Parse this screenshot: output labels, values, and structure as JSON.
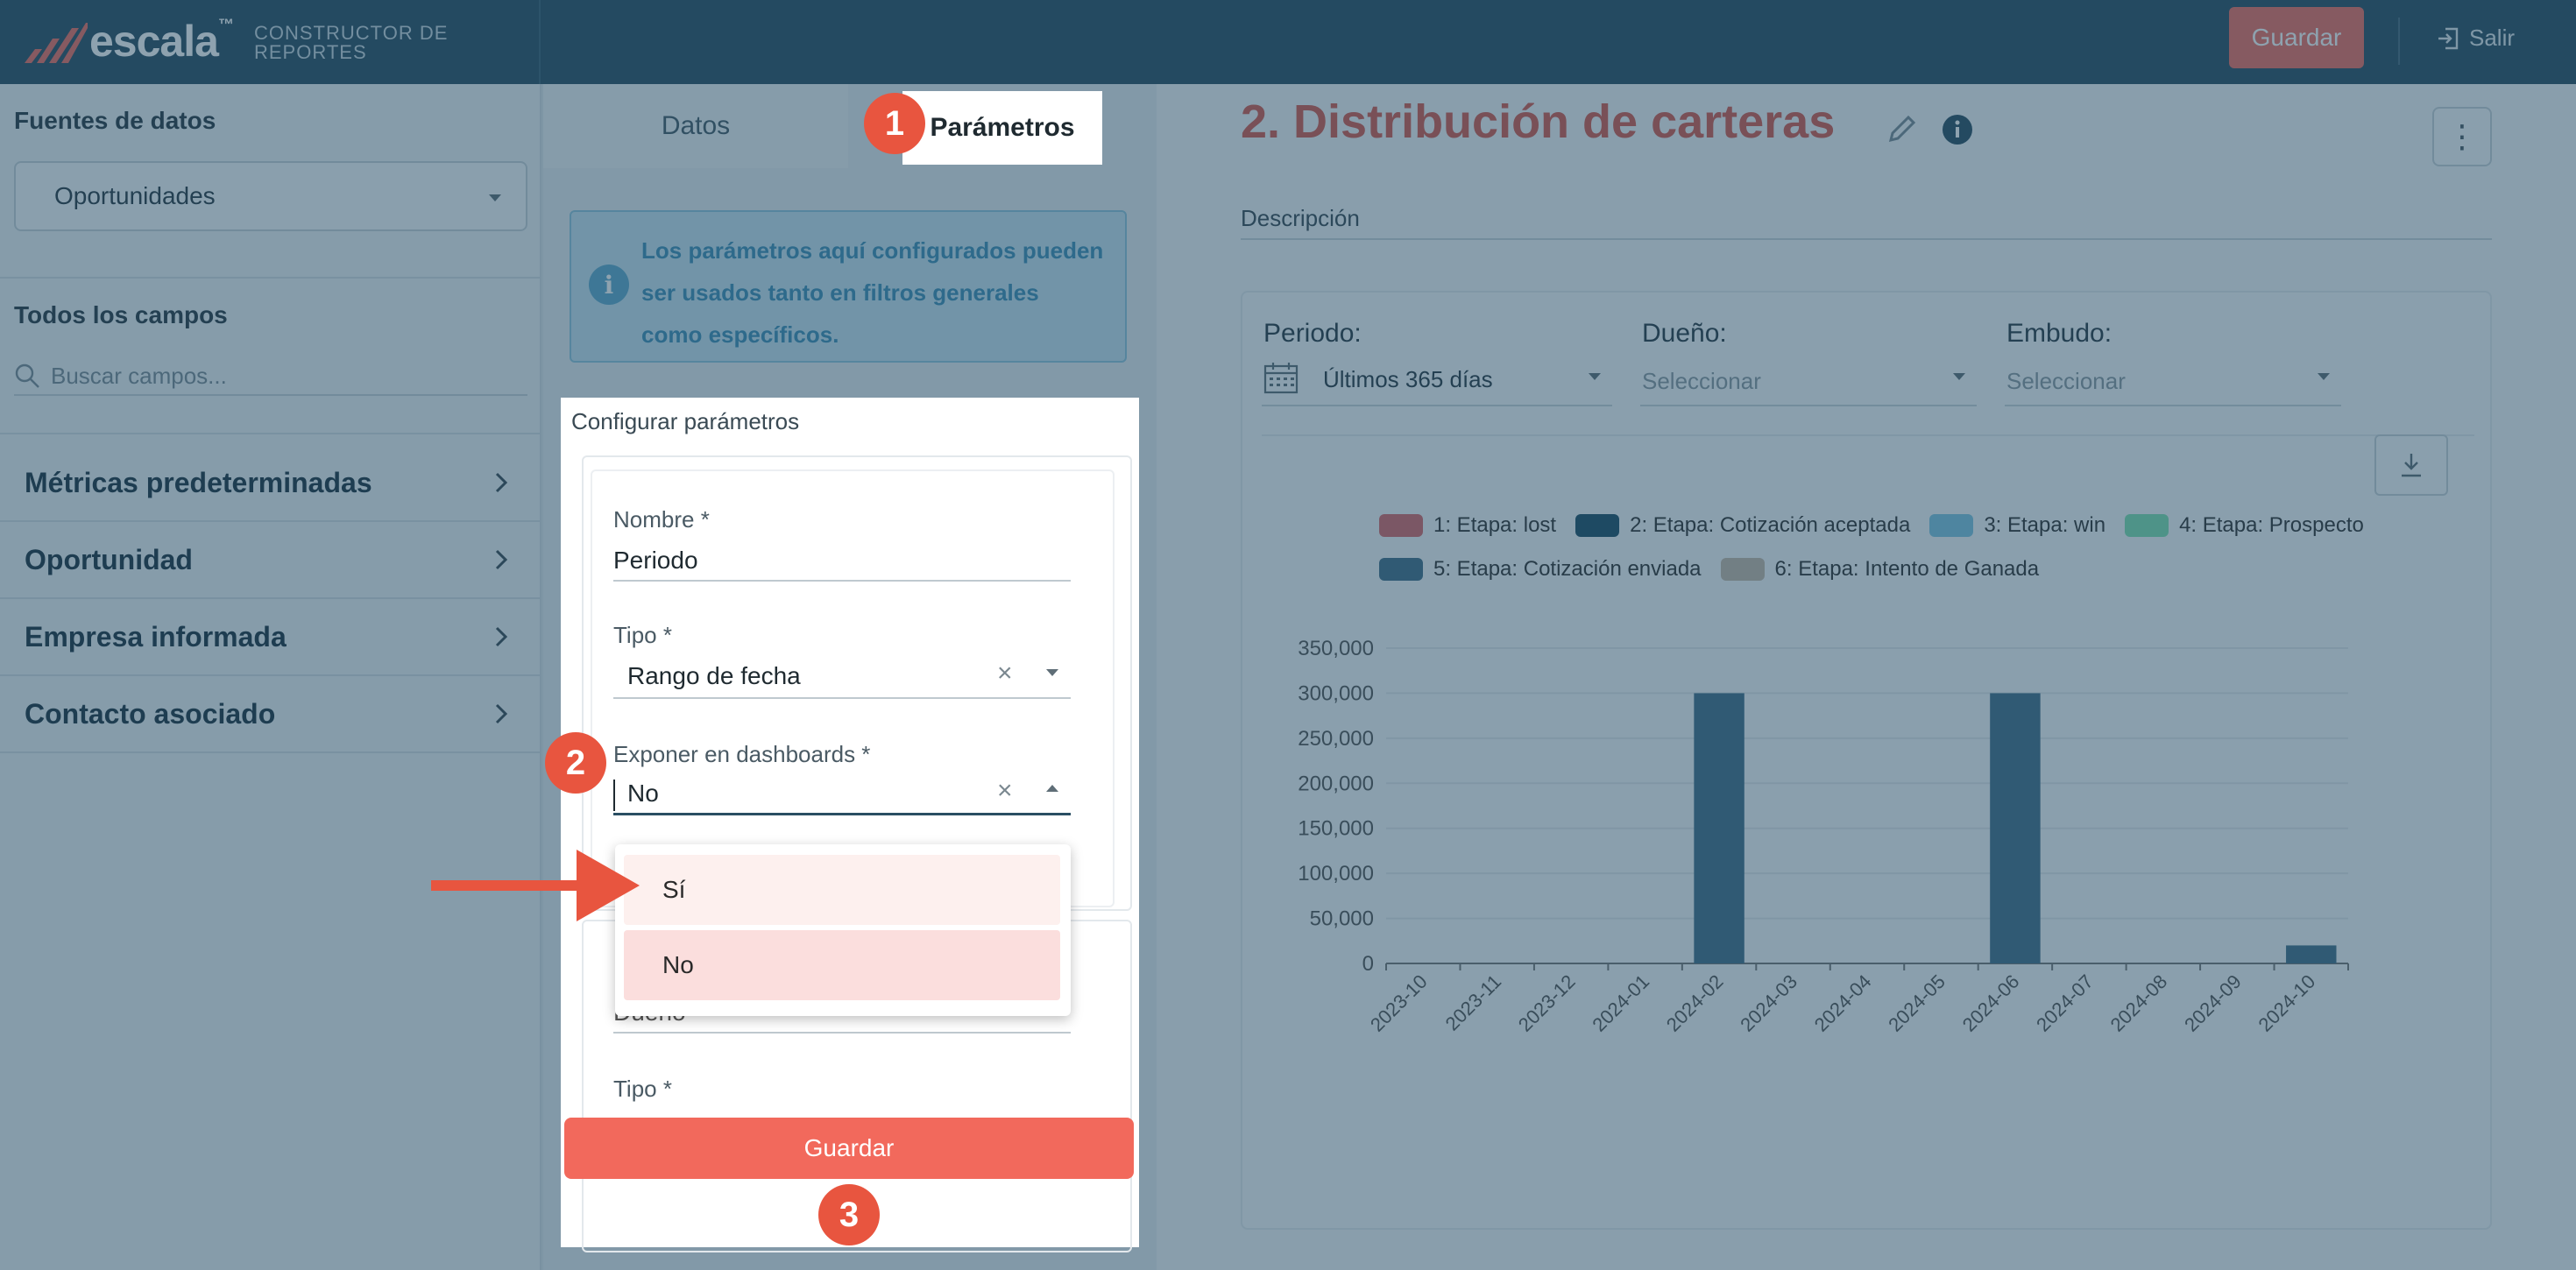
{
  "header": {
    "logo_text": "escala",
    "logo_tm": "™",
    "subtitle_line1": "CONSTRUCTOR DE",
    "subtitle_line2": "REPORTES",
    "save_label": "Guardar",
    "logout_label": "Salir"
  },
  "sidebar": {
    "data_sources_title": "Fuentes de datos",
    "selected_source": "Oportunidades",
    "all_fields_title": "Todos los campos",
    "search_placeholder": "Buscar campos...",
    "items": [
      {
        "label": "Métricas predeterminadas"
      },
      {
        "label": "Oportunidad"
      },
      {
        "label": "Empresa informada"
      },
      {
        "label": "Contacto asociado"
      }
    ]
  },
  "middle": {
    "tabs": [
      {
        "label": "Datos"
      },
      {
        "label": "Parámetros"
      }
    ],
    "info_text": "Los parámetros aquí configurados pueden ser usados tanto en filtros generales como específicos.",
    "config_title": "Configurar parámetros",
    "param1": {
      "name_label": "Nombre *",
      "name_value": "Periodo",
      "type_label": "Tipo *",
      "type_value": "Rango de fecha",
      "expose_label": "Exponer en dashboards *",
      "expose_value": "No",
      "clear_glyph": "×"
    },
    "param2": {
      "name_value": "Dueño",
      "type_label": "Tipo *"
    },
    "dropdown_options": [
      {
        "label": "Sí"
      },
      {
        "label": "No"
      }
    ],
    "save_label": "Guardar"
  },
  "steps": [
    "1",
    "2",
    "3"
  ],
  "report": {
    "title": "2. Distribución de carteras",
    "description_label": "Descripción",
    "more_glyph": "⋮",
    "filters": [
      {
        "label": "Periodo:",
        "value": "Últimos 365 días"
      },
      {
        "label": "Dueño:",
        "value": "Seleccionar"
      },
      {
        "label": "Embudo:",
        "value": "Seleccionar"
      }
    ]
  },
  "colors": {
    "accent": "#f2695c",
    "header": "#2a4e63"
  },
  "chart_data": {
    "type": "bar",
    "categories": [
      "2023-10",
      "2023-11",
      "2023-12",
      "2024-01",
      "2024-02",
      "2024-03",
      "2024-04",
      "2024-05",
      "2024-06",
      "2024-07",
      "2024-08",
      "2024-09",
      "2024-10"
    ],
    "series": [
      {
        "name": "1: Etapa: lost",
        "color": "#d9696a",
        "values": [
          0,
          0,
          0,
          0,
          0,
          0,
          0,
          0,
          0,
          0,
          0,
          0,
          0
        ]
      },
      {
        "name": "2: Etapa: Cotización aceptada",
        "color": "#1f4e66",
        "values": [
          0,
          0,
          0,
          0,
          0,
          0,
          0,
          0,
          0,
          0,
          0,
          0,
          0
        ]
      },
      {
        "name": "3: Etapa: win",
        "color": "#7fc5e0",
        "values": [
          0,
          0,
          0,
          0,
          0,
          0,
          0,
          0,
          0,
          0,
          0,
          0,
          0
        ]
      },
      {
        "name": "4: Etapa: Prospecto",
        "color": "#7fe0b0",
        "values": [
          0,
          0,
          0,
          0,
          0,
          0,
          0,
          0,
          0,
          0,
          0,
          0,
          0
        ]
      },
      {
        "name": "5: Etapa: Cotización enviada",
        "color": "#426e89",
        "values": [
          0,
          0,
          0,
          0,
          300000,
          0,
          0,
          0,
          300000,
          0,
          0,
          0,
          20000
        ]
      },
      {
        "name": "6: Etapa: Intento de Ganada",
        "color": "#c7b8a8",
        "values": [
          0,
          0,
          0,
          0,
          0,
          0,
          0,
          0,
          0,
          0,
          0,
          0,
          0
        ]
      }
    ],
    "yticks": [
      "0",
      "50,000",
      "100,000",
      "150,000",
      "200,000",
      "250,000",
      "300,000",
      "350,000"
    ],
    "ylim": [
      0,
      350000
    ],
    "legend": "top"
  }
}
